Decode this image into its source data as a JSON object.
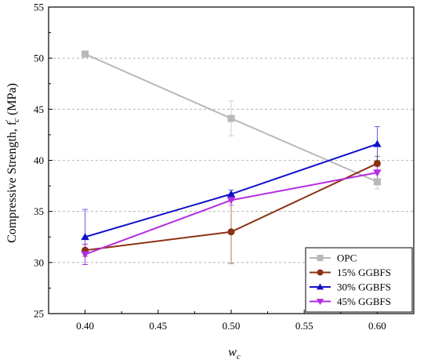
{
  "chart_data": {
    "type": "line",
    "xlabel": "w",
    "xlabel_sub": "c",
    "ylabel": "Compressive Strength, f",
    "ylabel_sup": "'",
    "ylabel_sub": "c",
    "ylabel_unit": " (MPa)",
    "xlim": [
      0.375,
      0.625
    ],
    "ylim": [
      25,
      55
    ],
    "xticks": [
      0.4,
      0.45,
      0.5,
      0.55,
      0.6
    ],
    "xtick_labels": [
      "0.40",
      "0.45",
      "0.50",
      "0.55",
      "0.60"
    ],
    "yticks": [
      25,
      30,
      35,
      40,
      45,
      50,
      55
    ],
    "ytick_labels": [
      "25",
      "30",
      "35",
      "40",
      "45",
      "50",
      "55"
    ],
    "grid": "horizontal-dashed",
    "legend_position": "bottom-right",
    "x": [
      0.4,
      0.5,
      0.6
    ],
    "series": [
      {
        "name": "OPC",
        "values": [
          50.4,
          44.1,
          37.9
        ],
        "err": [
          0.2,
          1.7,
          0.7
        ],
        "color": "#b8b8b8",
        "marker": "square"
      },
      {
        "name": "15% GGBFS",
        "values": [
          31.2,
          33.0,
          39.7
        ],
        "err": [
          0.6,
          3.1,
          0.7
        ],
        "color": "#8b3212",
        "marker": "circle"
      },
      {
        "name": "30% GGBFS",
        "values": [
          32.5,
          36.7,
          41.6
        ],
        "err": [
          2.7,
          0.4,
          1.7
        ],
        "color": "#1010cc",
        "marker": "triangle-up"
      },
      {
        "name": "45% GGBFS",
        "values": [
          30.8,
          36.1,
          38.8
        ],
        "err": [
          1.0,
          0.5,
          0.6
        ],
        "color": "#b42be0",
        "marker": "triangle-down"
      }
    ]
  }
}
